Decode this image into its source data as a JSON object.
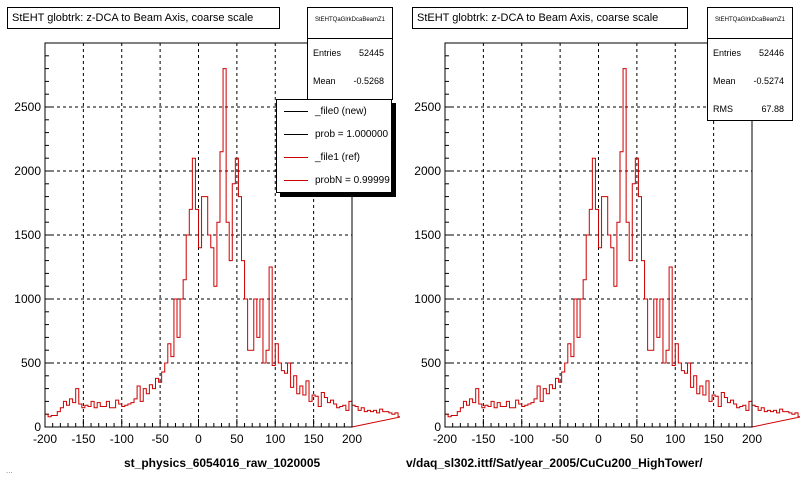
{
  "footer_stamp": "...",
  "panels": [
    {
      "title": "StEHT globtrk: z-DCA to Beam Axis, coarse scale",
      "stats": {
        "name": "StEHTQaGlrkDcaBeamZ1",
        "rows": [
          {
            "label": "Entries",
            "value": "52445"
          },
          {
            "label": "Mean",
            "value": "-0.5268"
          }
        ]
      },
      "legend": [
        {
          "label": "_file0 (new)",
          "color": "#000000"
        },
        {
          "label": "prob = 1.000000",
          "color": "#000000"
        },
        {
          "label": "_file1 (ref)",
          "color": "#cc0000"
        },
        {
          "label": "probN = 0.99999",
          "color": "#cc0000"
        }
      ],
      "x_caption": "st_physics_6054016_raw_1020005"
    },
    {
      "title": "StEHT globtrk: z-DCA to Beam Axis, coarse scale",
      "stats": {
        "name": "StEHTQaGlrkDcaBeamZ1",
        "rows": [
          {
            "label": "Entries",
            "value": "52446"
          },
          {
            "label": "Mean",
            "value": "-0.5274"
          },
          {
            "label": "RMS",
            "value": "67.88"
          }
        ]
      },
      "x_caption": "v/daq_sl302.ittf/Sat/year_2005/CuCu200_HighTower/"
    }
  ],
  "chart_data": [
    {
      "type": "bar",
      "style": "step-histogram",
      "x_ticks": [
        "-200",
        "-150",
        "-100",
        "-50",
        "0",
        "50",
        "100",
        "150",
        "200"
      ],
      "y_ticks": [
        "0",
        "500",
        "1000",
        "1500",
        "2000",
        "2500"
      ],
      "xlim": [
        -200,
        200
      ],
      "ylim": [
        0,
        3000
      ],
      "grid": true,
      "bin_width": 4,
      "series": [
        {
          "color": "#cc0000",
          "values": [
            100,
            80,
            90,
            90,
            120,
            150,
            200,
            170,
            220,
            190,
            300,
            180,
            150,
            170,
            160,
            200,
            150,
            190,
            160,
            160,
            200,
            150,
            150,
            210,
            180,
            160,
            170,
            180,
            190,
            220,
            320,
            200,
            300,
            260,
            330,
            300,
            380,
            350,
            430,
            500,
            650,
            550,
            1000,
            700,
            1000,
            1150,
            1500,
            1700,
            2100,
            1700,
            1400,
            1800,
            1800,
            1500,
            1400,
            1100,
            1600,
            2150,
            2800,
            1600,
            1300,
            1900,
            2100,
            1800,
            1300,
            1000,
            600,
            600,
            1000,
            700,
            1000,
            500,
            600,
            1250,
            480,
            650,
            500,
            440,
            420,
            500,
            310,
            400,
            260,
            320,
            250,
            360,
            200,
            250,
            240,
            160,
            270,
            230,
            190,
            210,
            180,
            150,
            160,
            170,
            130,
            200,
            170,
            160,
            130,
            150,
            120,
            130,
            120,
            130,
            110,
            140,
            120,
            120,
            110,
            100,
            110,
            80,
            100,
            110,
            90,
            100
          ]
        }
      ]
    },
    {
      "type": "bar",
      "style": "step-histogram",
      "x_ticks": [
        "-200",
        "-150",
        "-100",
        "-50",
        "0",
        "50",
        "100",
        "150",
        "200"
      ],
      "y_ticks": [
        "0",
        "500",
        "1000",
        "1500",
        "2000",
        "2500"
      ],
      "xlim": [
        -200,
        200
      ],
      "ylim": [
        0,
        3000
      ],
      "grid": true,
      "bin_width": 4,
      "series": [
        {
          "color": "#cc0000",
          "values": [
            100,
            80,
            90,
            90,
            120,
            150,
            200,
            170,
            220,
            190,
            300,
            180,
            150,
            170,
            160,
            200,
            150,
            190,
            160,
            160,
            200,
            150,
            150,
            210,
            180,
            160,
            170,
            180,
            190,
            220,
            320,
            200,
            300,
            260,
            330,
            300,
            380,
            350,
            430,
            500,
            650,
            550,
            1000,
            700,
            1000,
            1150,
            1500,
            1700,
            2100,
            1700,
            1400,
            1800,
            1800,
            1500,
            1400,
            1100,
            1600,
            2150,
            2800,
            1600,
            1300,
            1900,
            2100,
            1800,
            1300,
            1000,
            600,
            600,
            1000,
            700,
            1000,
            500,
            600,
            1250,
            480,
            650,
            500,
            440,
            420,
            500,
            310,
            400,
            260,
            320,
            250,
            360,
            200,
            250,
            240,
            160,
            270,
            230,
            190,
            210,
            180,
            150,
            160,
            170,
            130,
            200,
            170,
            160,
            130,
            150,
            120,
            130,
            120,
            130,
            110,
            140,
            120,
            120,
            110,
            100,
            110,
            80,
            100,
            110,
            90,
            100
          ]
        }
      ]
    }
  ]
}
